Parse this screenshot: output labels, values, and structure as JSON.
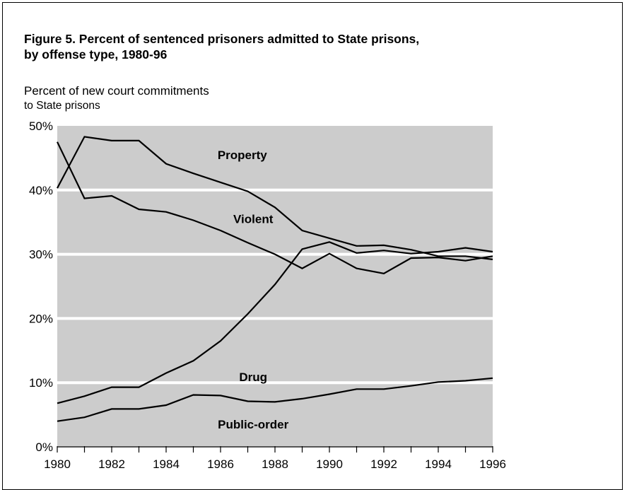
{
  "chart_data": {
    "type": "line",
    "title": "Figure 5.  Percent of sentenced prisoners admitted to State prisons,\nby offense type, 1980-96",
    "ylabel_line1": "Percent of new court commitments",
    "ylabel_line2": "to State prisons",
    "xlabel": "",
    "ylim": [
      0,
      50
    ],
    "xlim": [
      1980,
      1996
    ],
    "yticks": [
      0,
      10,
      20,
      30,
      40,
      50
    ],
    "ytick_labels": [
      "0%",
      "10%",
      "20%",
      "30%",
      "40%",
      "50%"
    ],
    "xticks": [
      1980,
      1982,
      1984,
      1986,
      1988,
      1990,
      1992,
      1994,
      1996
    ],
    "xtick_labels": [
      "1980",
      "1982",
      "1984",
      "1986",
      "1988",
      "1990",
      "1992",
      "1994",
      "1996"
    ],
    "grid": true,
    "x": [
      1980,
      1981,
      1982,
      1983,
      1984,
      1985,
      1986,
      1987,
      1988,
      1989,
      1990,
      1991,
      1992,
      1993,
      1994,
      1995,
      1996
    ],
    "series": [
      {
        "name": "Property",
        "values": [
          40.3,
          48.3,
          47.7,
          47.7,
          44.1,
          42.6,
          41.2,
          39.8,
          37.3,
          33.7,
          32.5,
          31.3,
          31.4,
          30.7,
          29.7,
          29.7,
          29.2
        ],
        "label_at": [
          1986.8,
          45.5
        ]
      },
      {
        "name": "Violent",
        "values": [
          47.5,
          38.7,
          39.1,
          37.0,
          36.6,
          35.3,
          33.7,
          31.8,
          30.0,
          27.8,
          30.1,
          27.8,
          27.0,
          29.4,
          29.5,
          29.0,
          29.7
        ],
        "label_at": [
          1987.2,
          35.5
        ]
      },
      {
        "name": "Drug",
        "values": [
          6.8,
          7.9,
          9.3,
          9.3,
          11.5,
          13.4,
          16.5,
          20.7,
          25.3,
          30.8,
          31.9,
          30.2,
          30.6,
          30.1,
          30.4,
          31.0,
          30.4
        ],
        "label_at": [
          1987.2,
          10.9
        ]
      },
      {
        "name": "Public-order",
        "values": [
          4.0,
          4.6,
          5.9,
          5.9,
          6.5,
          8.1,
          8.0,
          7.1,
          7.0,
          7.5,
          8.2,
          9.0,
          9.0,
          9.5,
          10.1,
          10.3,
          10.7
        ],
        "label_at": [
          1987.2,
          3.5
        ]
      }
    ]
  }
}
